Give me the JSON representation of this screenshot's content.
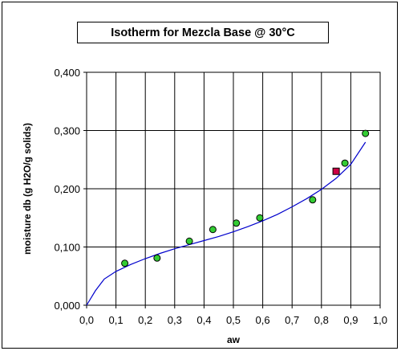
{
  "chart_data": {
    "type": "scatter",
    "title": "Isotherm for Mezcla Base  @ 30°C",
    "xlabel": "aw",
    "ylabel": "moisture db  (g H2O/g solids)",
    "xlim": [
      0.0,
      1.0
    ],
    "ylim": [
      0.0,
      0.4
    ],
    "x_ticks": [
      "0,0",
      "0,1",
      "0,2",
      "0,3",
      "0,4",
      "0,5",
      "0,6",
      "0,7",
      "0,8",
      "0,9",
      "1,0"
    ],
    "y_ticks": [
      "0,000",
      "0,100",
      "0,200",
      "0,300",
      "0,400"
    ],
    "grid": {
      "vertical": true,
      "horizontal": true
    },
    "series": [
      {
        "kind": "markers",
        "marker": "circle",
        "color": "#33cc33",
        "points": [
          {
            "x": 0.13,
            "y": 0.072
          },
          {
            "x": 0.24,
            "y": 0.081
          },
          {
            "x": 0.35,
            "y": 0.11
          },
          {
            "x": 0.43,
            "y": 0.13
          },
          {
            "x": 0.51,
            "y": 0.141
          },
          {
            "x": 0.59,
            "y": 0.15
          },
          {
            "x": 0.77,
            "y": 0.181
          },
          {
            "x": 0.88,
            "y": 0.244
          },
          {
            "x": 0.95,
            "y": 0.295
          }
        ]
      },
      {
        "kind": "markers",
        "marker": "square",
        "color": "#cc0044",
        "points": [
          {
            "x": 0.85,
            "y": 0.23
          }
        ]
      },
      {
        "kind": "line",
        "color": "#0000cc",
        "points": [
          {
            "x": 0.0,
            "y": 0.0
          },
          {
            "x": 0.03,
            "y": 0.025
          },
          {
            "x": 0.06,
            "y": 0.045
          },
          {
            "x": 0.1,
            "y": 0.058
          },
          {
            "x": 0.15,
            "y": 0.07
          },
          {
            "x": 0.2,
            "y": 0.08
          },
          {
            "x": 0.25,
            "y": 0.089
          },
          {
            "x": 0.3,
            "y": 0.097
          },
          {
            "x": 0.35,
            "y": 0.104
          },
          {
            "x": 0.4,
            "y": 0.111
          },
          {
            "x": 0.45,
            "y": 0.118
          },
          {
            "x": 0.5,
            "y": 0.126
          },
          {
            "x": 0.55,
            "y": 0.135
          },
          {
            "x": 0.6,
            "y": 0.145
          },
          {
            "x": 0.65,
            "y": 0.156
          },
          {
            "x": 0.7,
            "y": 0.169
          },
          {
            "x": 0.75,
            "y": 0.183
          },
          {
            "x": 0.8,
            "y": 0.199
          },
          {
            "x": 0.85,
            "y": 0.218
          },
          {
            "x": 0.9,
            "y": 0.242
          },
          {
            "x": 0.95,
            "y": 0.28
          }
        ]
      }
    ]
  }
}
